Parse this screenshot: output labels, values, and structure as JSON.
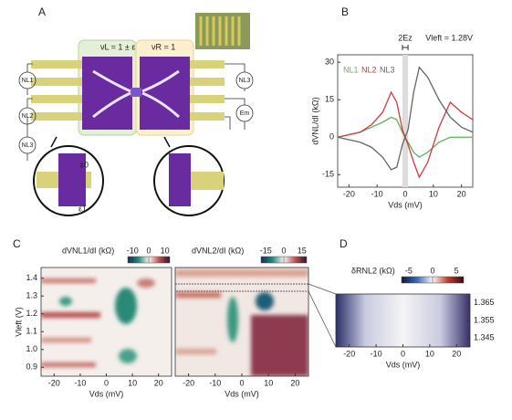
{
  "panel_labels": [
    "A",
    "B",
    "C",
    "D"
  ],
  "schematic": {
    "nu_left": "νL = 1 ± ε",
    "nu_right": "νR = 1",
    "left_probes": [
      "NL1",
      "NL2",
      "NL3"
    ],
    "right_probes": [
      "NL3",
      "Em"
    ],
    "inset_labels": [
      "ε0",
      "ε1"
    ]
  },
  "chart_data": [
    {
      "type": "line",
      "x_label": "Vds (mV)",
      "y_label": "dVNL/dI (kΩ)",
      "annotations": [
        "2Ez",
        "Vleft = 1.28V"
      ],
      "x": [
        -24,
        -20,
        -16,
        -12,
        -8,
        -5,
        -3,
        -1,
        0,
        1,
        3,
        5,
        8,
        12,
        16,
        20,
        24
      ],
      "series": [
        {
          "name": "NL1",
          "color": "#5fb35a",
          "values": [
            0,
            1,
            2,
            4,
            6,
            8,
            7,
            2,
            0,
            -2,
            -6,
            -8,
            -6,
            -2,
            0,
            0,
            0
          ]
        },
        {
          "name": "NL2",
          "color": "#cf3b3b",
          "values": [
            0,
            1,
            2,
            5,
            10,
            18,
            14,
            3,
            0,
            -3,
            -10,
            -16,
            -10,
            4,
            14,
            10,
            7
          ]
        },
        {
          "name": "NL3",
          "color": "#666666",
          "values": [
            0,
            -1,
            -2,
            -4,
            -8,
            -13,
            -12,
            -3,
            0,
            3,
            18,
            28,
            24,
            15,
            8,
            4,
            2
          ]
        }
      ],
      "xlim": [
        -24,
        24
      ],
      "ylim": [
        -20,
        33
      ],
      "xticks": [
        -20,
        -10,
        0,
        10,
        20
      ],
      "yticks": [
        -15,
        0,
        15,
        30
      ]
    },
    {
      "type": "heatmap",
      "x_label": "Vds (mV)",
      "y_label": "Vleft (V)",
      "colorbar_label": "dVNL1/dI (kΩ)",
      "xlim": [
        -25,
        25
      ],
      "ylim": [
        0.85,
        1.46
      ],
      "xticks": [
        -20,
        -10,
        0,
        10,
        20
      ],
      "yticks": [
        0.9,
        {
          "value": 1.0,
          "label": "1.0"
        },
        1.1,
        1.2,
        1.3,
        1.4
      ],
      "colorbar_lim": [
        -13,
        13
      ],
      "colorbar_ticks": [
        -10,
        0,
        10
      ]
    },
    {
      "type": "heatmap",
      "x_label": "Vds (mV)",
      "colorbar_label": "dVNL2/dI (kΩ)",
      "xlim": [
        -25,
        25
      ],
      "ylim": [
        0.85,
        1.46
      ],
      "xticks": [
        -20,
        -10,
        0,
        10,
        20
      ],
      "colorbar_lim": [
        -19,
        19
      ],
      "colorbar_ticks": [
        -15,
        0,
        15
      ]
    },
    {
      "type": "heatmap",
      "x_label": "Vds (mV)",
      "colorbar_label": "δRNL2 (kΩ)",
      "xlim": [
        -25,
        25
      ],
      "ylim": [
        1.34,
        1.37
      ],
      "xticks": [
        -20,
        -10,
        0,
        10,
        20
      ],
      "yticks": [
        1.345,
        1.355,
        1.365
      ],
      "y_side": "right",
      "colorbar_lim": [
        -6.5,
        6.5
      ],
      "colorbar_ticks": [
        -5,
        0,
        5
      ]
    }
  ]
}
